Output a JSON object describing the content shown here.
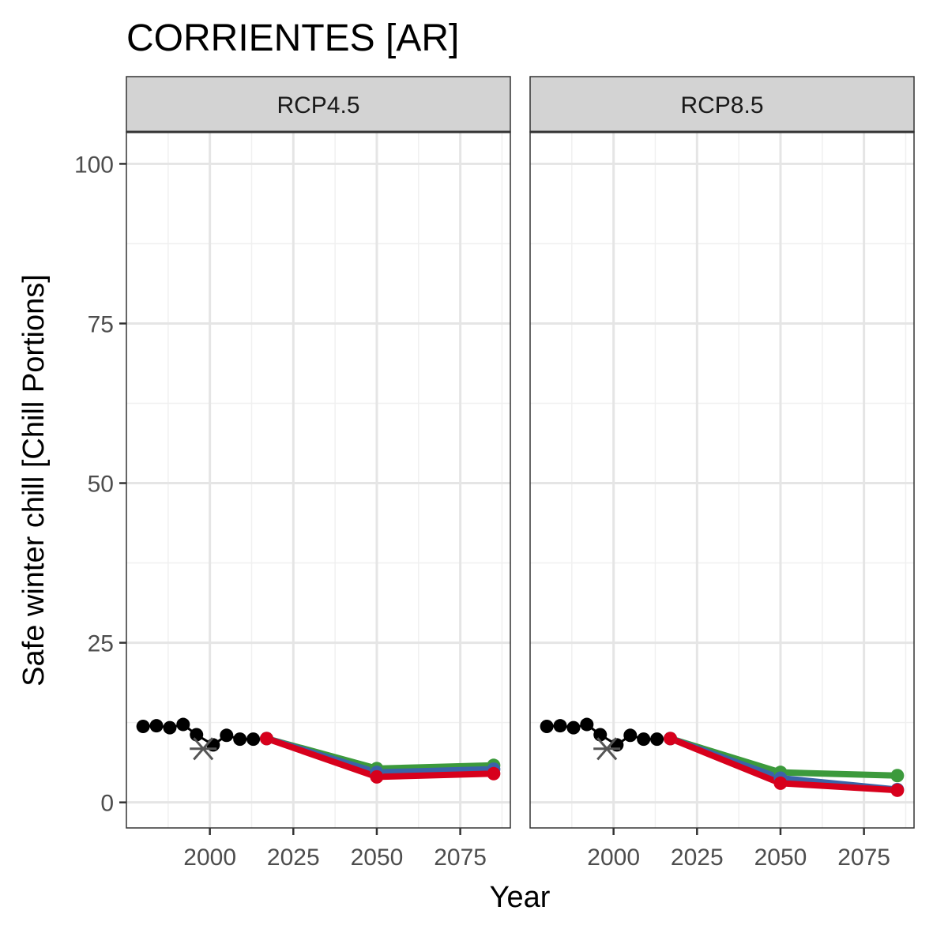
{
  "colors": {
    "historic": "#000000",
    "reference": "#555555",
    "scenario_green": "#3c9a3c",
    "scenario_blue": "#3a64a8",
    "scenario_red": "#d7001c",
    "grid_major": "#e5e5e5",
    "grid_minor": "#f0f0f0",
    "strip_bg": "#d3d3d3",
    "panel_border": "#333333"
  },
  "chart_data": {
    "type": "line",
    "title": "CORRIENTES [AR]",
    "xlabel": "Year",
    "ylabel": "Safe winter chill [Chill Portions]",
    "xlim": [
      1975,
      2090
    ],
    "ylim": [
      -4,
      105
    ],
    "x_ticks": [
      2000,
      2025,
      2050,
      2075
    ],
    "x_minor_ticks": [
      1987.5,
      2012.5,
      2037.5,
      2062.5,
      2087.5
    ],
    "y_ticks": [
      0,
      25,
      50,
      75,
      100
    ],
    "y_minor_ticks": [
      12.5,
      37.5,
      62.5,
      87.5
    ],
    "grid": true,
    "panels": [
      {
        "label": "RCP4.5",
        "historic": {
          "x": [
            1980,
            1984,
            1988,
            1992,
            1996,
            2001,
            2005,
            2009,
            2013
          ],
          "y": [
            11.9,
            12.0,
            11.7,
            12.2,
            10.6,
            9.0,
            10.5,
            9.9,
            9.9
          ]
        },
        "reference": {
          "x": 1998,
          "y": 8.4
        },
        "scenarios": [
          {
            "color": "scenario_green",
            "x": [
              2017,
              2050,
              2085
            ],
            "y": [
              10.0,
              5.3,
              5.8
            ]
          },
          {
            "color": "scenario_blue",
            "x": [
              2017,
              2050,
              2085
            ],
            "y": [
              10.0,
              4.7,
              5.2
            ]
          },
          {
            "color": "scenario_red",
            "x": [
              2017,
              2050,
              2085
            ],
            "y": [
              10.0,
              4.0,
              4.5
            ]
          }
        ]
      },
      {
        "label": "RCP8.5",
        "historic": {
          "x": [
            1980,
            1984,
            1988,
            1992,
            1996,
            2001,
            2005,
            2009,
            2013
          ],
          "y": [
            11.9,
            12.0,
            11.7,
            12.2,
            10.6,
            9.0,
            10.5,
            9.9,
            9.9
          ]
        },
        "reference": {
          "x": 1998,
          "y": 8.4
        },
        "scenarios": [
          {
            "color": "scenario_green",
            "x": [
              2017,
              2050,
              2085
            ],
            "y": [
              10.0,
              4.7,
              4.2
            ]
          },
          {
            "color": "scenario_blue",
            "x": [
              2017,
              2050,
              2085
            ],
            "y": [
              10.0,
              3.8,
              2.0
            ]
          },
          {
            "color": "scenario_red",
            "x": [
              2017,
              2050,
              2085
            ],
            "y": [
              10.0,
              3.0,
              1.9
            ]
          }
        ]
      }
    ]
  }
}
